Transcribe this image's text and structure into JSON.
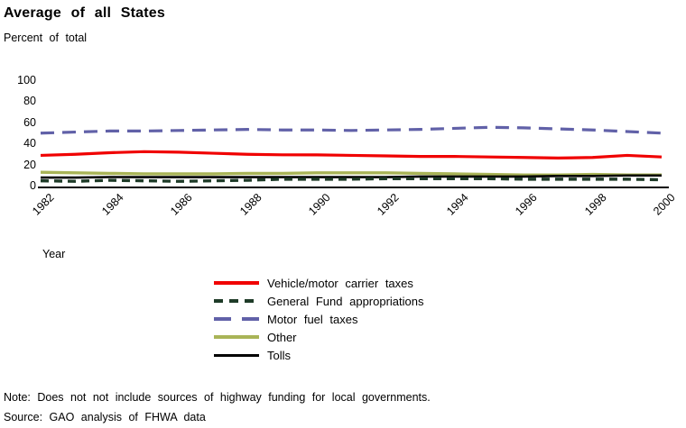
{
  "title": "Average of all States",
  "subtitle": "Percent of total",
  "note": "Note: Does not not include sources of highway funding for local governments.",
  "source": "Source: GAO analysis of FHWA data",
  "chart_data": {
    "type": "line",
    "title": "Average of all States",
    "subtitle": "Percent of total",
    "xlabel": "Year",
    "ylabel": "Percent of total",
    "xlim": [
      1982,
      2000
    ],
    "ylim": [
      0,
      100
    ],
    "grid": false,
    "legend_position": "bottom-center",
    "axis_color": "#000000",
    "x": [
      1982,
      1983,
      1984,
      1985,
      1986,
      1987,
      1988,
      1989,
      1990,
      1991,
      1992,
      1993,
      1994,
      1995,
      1996,
      1997,
      1998,
      1999,
      2000
    ],
    "x_ticks": [
      1982,
      1984,
      1986,
      1988,
      1990,
      1992,
      1994,
      1996,
      1998,
      2000
    ],
    "x_tick_labels": [
      "1982",
      "1984",
      "1986",
      "1988",
      "1990",
      "1992",
      "1994",
      "1996",
      "1998",
      "2000"
    ],
    "y_ticks": [
      0,
      20,
      40,
      60,
      80,
      100
    ],
    "series": [
      {
        "name": "Vehicle/motor carrier taxes",
        "color": "#f00000",
        "dash": "solid",
        "line_width": 3.2,
        "values": [
          29,
          30,
          31.5,
          32.5,
          32,
          31,
          30,
          29.5,
          29.5,
          29,
          28.5,
          28,
          28,
          27.5,
          27,
          26.5,
          27,
          29,
          27.5
        ]
      },
      {
        "name": "General Fund appropriations",
        "color": "#1e3b28",
        "dash": "short-dash",
        "line_width": 3.4,
        "values": [
          5,
          4.5,
          5.5,
          5,
          4.5,
          5,
          5.5,
          6.5,
          6.5,
          6.5,
          7,
          7,
          7,
          7,
          6.5,
          6.5,
          6.5,
          6.5,
          6
        ]
      },
      {
        "name": "Motor fuel taxes",
        "color": "#6161a8",
        "dash": "long-dash",
        "line_width": 3.2,
        "values": [
          50,
          51,
          52,
          52,
          52.5,
          53,
          53.5,
          53,
          53,
          52.5,
          53,
          53.5,
          54.5,
          55.5,
          55,
          54,
          53,
          51.5,
          50
        ]
      },
      {
        "name": "Other",
        "color": "#a9b457",
        "dash": "solid",
        "line_width": 3.4,
        "values": [
          13,
          12.5,
          12,
          11.5,
          11.5,
          11.5,
          12,
          12,
          12.5,
          12.5,
          12.5,
          12,
          11.5,
          11,
          10.5,
          10.5,
          11,
          10.5,
          10.5
        ]
      },
      {
        "name": "Tolls",
        "color": "#000000",
        "dash": "solid",
        "line_width": 2.6,
        "values": [
          8,
          8,
          8.5,
          8.5,
          8.5,
          8.5,
          8.5,
          8.5,
          8.5,
          8.5,
          8.5,
          9,
          9,
          9,
          9,
          9.5,
          9.5,
          10,
          10
        ]
      }
    ]
  }
}
